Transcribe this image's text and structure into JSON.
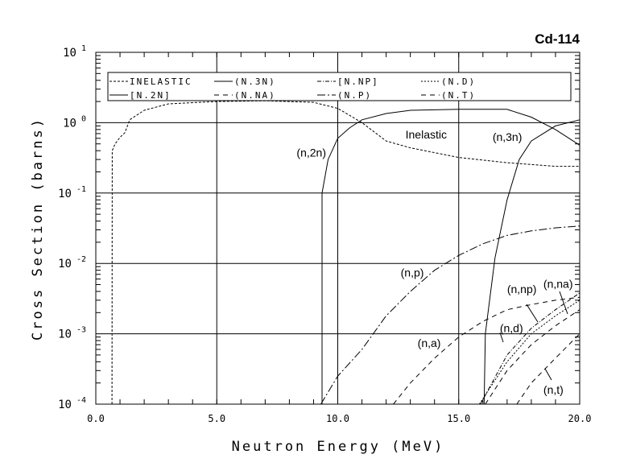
{
  "chart_data": {
    "type": "line",
    "title": "Cd-114",
    "xlabel": "Neutron Energy (MeV)",
    "ylabel": "Cross Section (barns)",
    "xlim": [
      0,
      20
    ],
    "ylim": [
      0.0001,
      10
    ],
    "yscale": "log",
    "grid": true,
    "legend_placement": "top",
    "x_ticks": [
      "0.0",
      "5.0",
      "10.0",
      "15.0",
      "20.0"
    ],
    "y_ticks": [
      {
        "base": "10",
        "exp": "1"
      },
      {
        "base": "10",
        "exp": "0"
      },
      {
        "base": "10",
        "exp": "-1"
      },
      {
        "base": "10",
        "exp": "-2"
      },
      {
        "base": "10",
        "exp": "-3"
      },
      {
        "base": "10",
        "exp": "-4"
      }
    ],
    "legend": [
      {
        "label": "INELASTIC",
        "series": "inelastic"
      },
      {
        "label": "(N.3N)",
        "series": "n3n"
      },
      {
        "label": "[N.NP]",
        "series": "nnp"
      },
      {
        "label": "(N.D)",
        "series": "nd"
      },
      {
        "label": "[N.2N]",
        "series": "n2n"
      },
      {
        "label": "(N.NA)",
        "series": "nna"
      },
      {
        "label": "(N.P)",
        "series": "np"
      },
      {
        "label": "(N.T)",
        "series": "nt"
      }
    ],
    "series": [
      {
        "id": "inelastic",
        "name": "Inelastic",
        "dash": "3,2",
        "points": [
          [
            0.67,
            0.0001
          ],
          [
            0.68,
            0.4
          ],
          [
            0.8,
            0.5
          ],
          [
            1.0,
            0.62
          ],
          [
            1.2,
            0.72
          ],
          [
            1.4,
            1.1
          ],
          [
            2,
            1.5
          ],
          [
            3,
            1.85
          ],
          [
            5,
            2.0
          ],
          [
            7,
            2.05
          ],
          [
            9,
            1.95
          ],
          [
            10,
            1.6
          ],
          [
            11,
            1.0
          ],
          [
            12,
            0.55
          ],
          [
            13,
            0.44
          ],
          [
            15,
            0.32
          ],
          [
            17,
            0.27
          ],
          [
            19,
            0.24
          ],
          [
            20,
            0.24
          ]
        ]
      },
      {
        "id": "n2n",
        "name": "(n,2n)",
        "dash": "",
        "points": [
          [
            9.35,
            0.0001
          ],
          [
            9.35,
            0.1
          ],
          [
            9.6,
            0.3
          ],
          [
            10,
            0.6
          ],
          [
            10.5,
            0.85
          ],
          [
            11,
            1.1
          ],
          [
            12,
            1.35
          ],
          [
            13,
            1.5
          ],
          [
            15,
            1.55
          ],
          [
            17,
            1.55
          ],
          [
            18,
            1.2
          ],
          [
            19,
            0.8
          ],
          [
            20,
            0.48
          ]
        ]
      },
      {
        "id": "n3n",
        "name": "(n,3n)",
        "dash": "",
        "points": [
          [
            16.05,
            0.0001
          ],
          [
            16.1,
            0.001
          ],
          [
            16.5,
            0.012
          ],
          [
            17,
            0.08
          ],
          [
            17.5,
            0.3
          ],
          [
            18,
            0.55
          ],
          [
            19,
            0.9
          ],
          [
            20,
            1.1
          ]
        ]
      },
      {
        "id": "np",
        "name": "(n,p)",
        "dash": "10,3,2,3",
        "points": [
          [
            9.3,
            0.0001
          ],
          [
            10,
            0.00025
          ],
          [
            11,
            0.0006
          ],
          [
            12,
            0.0018
          ],
          [
            13,
            0.004
          ],
          [
            14,
            0.008
          ],
          [
            15,
            0.013
          ],
          [
            16,
            0.019
          ],
          [
            17,
            0.025
          ],
          [
            18,
            0.029
          ],
          [
            19,
            0.032
          ],
          [
            20,
            0.034
          ]
        ]
      },
      {
        "id": "nna",
        "name": "(n,na)",
        "dash": "6,5",
        "points": [
          [
            16.1,
            0.0001
          ],
          [
            17,
            0.0003
          ],
          [
            18,
            0.0007
          ],
          [
            19,
            0.0013
          ],
          [
            20,
            0.0022
          ]
        ]
      },
      {
        "id": "na",
        "name": "(n,a)",
        "dash": "6,5",
        "points": [
          [
            12.3,
            0.0001
          ],
          [
            13,
            0.0002
          ],
          [
            14,
            0.00045
          ],
          [
            15,
            0.0009
          ],
          [
            16,
            0.0015
          ],
          [
            17,
            0.0022
          ],
          [
            18,
            0.0026
          ],
          [
            19,
            0.003
          ],
          [
            20,
            0.0033
          ]
        ]
      },
      {
        "id": "nnp",
        "name": "(n,np)",
        "dash": "5,2,1,2",
        "points": [
          [
            15.9,
            0.0001
          ],
          [
            17,
            0.0005
          ],
          [
            18,
            0.0012
          ],
          [
            19,
            0.0022
          ],
          [
            20,
            0.0038
          ]
        ]
      },
      {
        "id": "nd",
        "name": "(n,d)",
        "dash": "2,2",
        "points": [
          [
            15.85,
            0.0001
          ],
          [
            17,
            0.0004
          ],
          [
            18,
            0.001
          ],
          [
            19,
            0.0018
          ],
          [
            20,
            0.003
          ]
        ]
      },
      {
        "id": "nt",
        "name": "(n,t)",
        "dash": "6,5",
        "points": [
          [
            17.4,
            0.0001
          ],
          [
            18,
            0.0002
          ],
          [
            19,
            0.00045
          ],
          [
            20,
            0.001
          ]
        ]
      }
    ],
    "annotations": [
      {
        "text": "Inelastic",
        "x": 12.8,
        "y": 0.6
      },
      {
        "text": "(n,2n)",
        "x": 8.3,
        "y": 0.33
      },
      {
        "text": "(n,3n)",
        "x": 16.4,
        "y": 0.55
      },
      {
        "text": "(n,p)",
        "x": 12.6,
        "y": 0.0065
      },
      {
        "text": "(n,a)",
        "x": 13.3,
        "y": 0.00065
      },
      {
        "text": "(n,np)",
        "x": 17.0,
        "y": 0.0038
      },
      {
        "text": "(n,na)",
        "x": 18.5,
        "y": 0.0045
      },
      {
        "text": "(n,d)",
        "x": 16.7,
        "y": 0.00105
      },
      {
        "text": "(n,t)",
        "x": 18.5,
        "y": 0.00014
      }
    ]
  }
}
